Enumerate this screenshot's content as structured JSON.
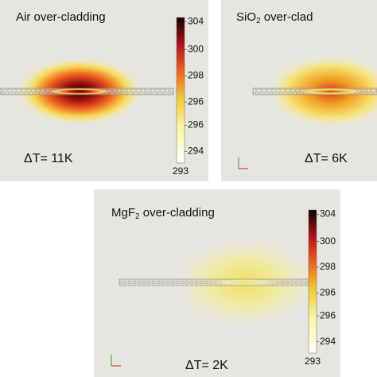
{
  "panels": [
    {
      "title": [
        "Air over-cladding"
      ],
      "delta": "ΔT= 11K",
      "colorbar": {
        "ticks": [
          "304",
          "300",
          "298",
          "296",
          "296",
          "294"
        ],
        "min": "293"
      }
    },
    {
      "title": [
        "SiO",
        "2",
        " over-clad"
      ],
      "delta": "ΔT= 6K"
    },
    {
      "title": [
        "MgF",
        "2",
        " over-cladding"
      ],
      "delta": "ΔT= 2K",
      "colorbar": {
        "ticks": [
          "304",
          "300",
          "298",
          "296",
          "296",
          "294"
        ],
        "min": "293"
      }
    }
  ]
}
